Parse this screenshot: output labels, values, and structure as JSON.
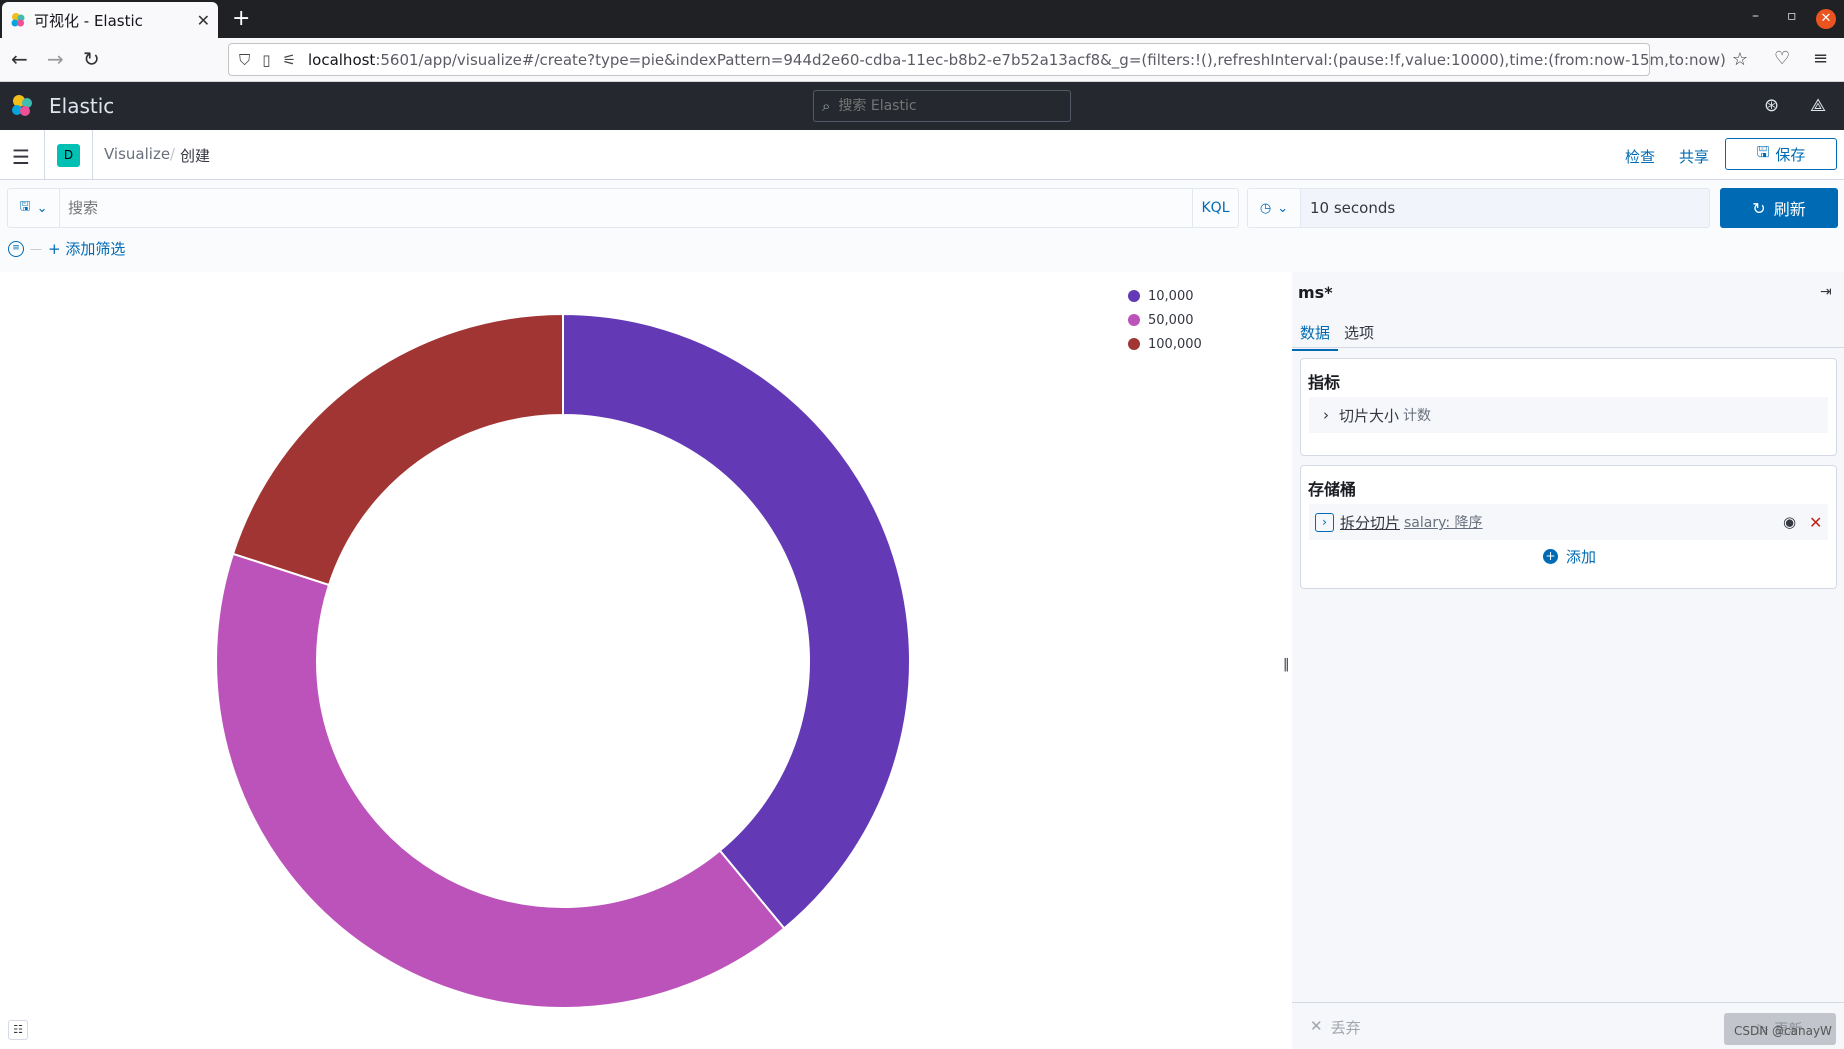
{
  "browser": {
    "tab_title": "可视化 - Elastic",
    "url_host": "localhost",
    "url_rest": ":5601/app/visualize#/create?type=pie&indexPattern=944d2e60-cdba-11ec-b8b2-e7b52a13acf8&_g=(filters:!(),refreshInterval:(pause:!f,value:10000),time:(from:now-15m,to:now)"
  },
  "kibana": {
    "brand": "Elastic",
    "search_placeholder": "搜索 Elastic"
  },
  "breadcrumb": {
    "space_badge": "D",
    "item1": "Visualize",
    "item2": "创建"
  },
  "top_actions": {
    "inspect": "检查",
    "share": "共享",
    "save": "保存"
  },
  "query": {
    "placeholder": "搜索",
    "language": "KQL",
    "refresh_interval": "10 seconds",
    "refresh_label": "刷新",
    "add_filter": "+ 添加筛选"
  },
  "chart_data": {
    "type": "pie",
    "donut": true,
    "categories": [
      "10,000",
      "50,000",
      "100,000"
    ],
    "values": [
      39,
      41,
      20
    ],
    "colors": [
      "#6439b5",
      "#bb53bb",
      "#a13533"
    ],
    "legend_position": "top-right"
  },
  "sidebar": {
    "index_pattern": "ms*",
    "tabs": [
      "数据",
      "选项"
    ],
    "metrics": {
      "title": "指标",
      "item_label": "切片大小",
      "item_sub": "计数"
    },
    "buckets": {
      "title": "存储桶",
      "item_label": "拆分切片",
      "item_sub": "salary: 降序",
      "add_label": "添加"
    },
    "footer": {
      "discard": "丢弃",
      "update": "更新"
    }
  },
  "watermark": "CSDN @canayW"
}
